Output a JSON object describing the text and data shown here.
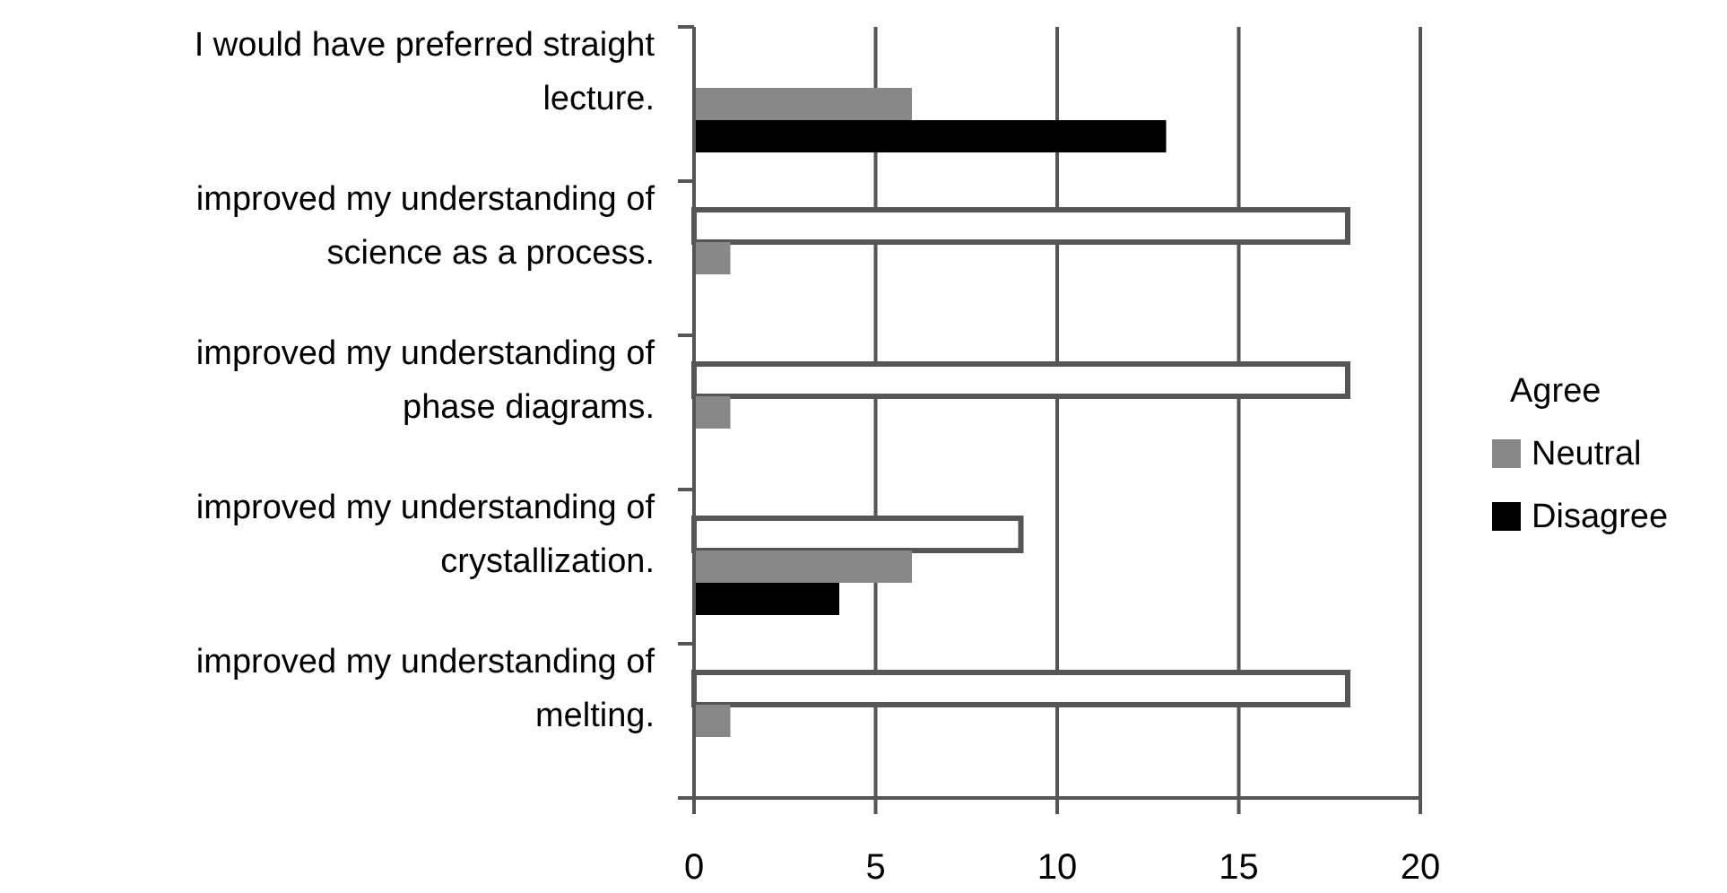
{
  "chart_data": {
    "type": "bar",
    "orientation": "horizontal",
    "categories": [
      "I would have preferred straight lecture.",
      "improved my understanding of science as a process.",
      "improved my understanding of phase diagrams.",
      "improved my understanding of crystallization.",
      "improved my understanding of melting."
    ],
    "series": [
      {
        "name": "Agree",
        "color": "#ffffff",
        "values": [
          0,
          18,
          18,
          9,
          18
        ]
      },
      {
        "name": "Neutral",
        "color": "#888888",
        "values": [
          6,
          1,
          1,
          6,
          1
        ]
      },
      {
        "name": "Disagree",
        "color": "#000000",
        "values": [
          13,
          0,
          0,
          4,
          0
        ]
      }
    ],
    "xlim": [
      0,
      20
    ],
    "xticks": [
      0,
      5,
      10,
      15,
      20
    ],
    "grid": "x",
    "legend": "right"
  }
}
